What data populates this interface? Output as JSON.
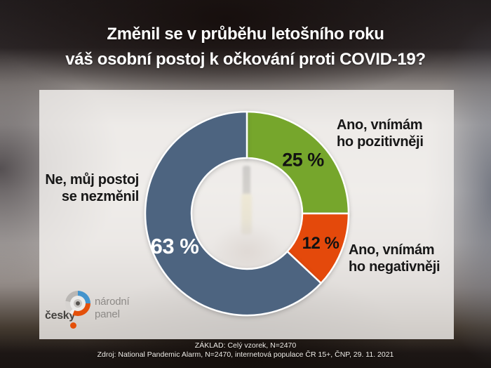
{
  "title": {
    "line1": "Změnil se v průběhu letošního roku",
    "line2": "váš osobní postoj k očkování proti COVID-19?"
  },
  "chart_data": {
    "type": "donut",
    "title": "Změnil se v průběhu letošního roku váš osobní postoj k očkování proti COVID-19?",
    "unit": "%",
    "start_angle_deg": 0,
    "direction": "clockwise",
    "inner_radius_ratio": 0.545,
    "legend_position": "callouts-around-donut",
    "segments": [
      {
        "key": "positive",
        "label": "Ano, vnímám ho pozitivněji",
        "callout_lines": [
          "Ano, vnímám",
          "ho pozitivněji"
        ],
        "value": 25,
        "display": "25 %",
        "color": "#76a62c"
      },
      {
        "key": "negative",
        "label": "Ano, vnímám ho negativněji",
        "callout_lines": [
          "Ano, vnímám",
          "ho negativněji"
        ],
        "value": 12,
        "display": "12 %",
        "color": "#e4490b"
      },
      {
        "key": "no_change",
        "label": "Ne, můj postoj se nezměnil",
        "callout_lines": [
          "Ne, můj postoj",
          "se nezměnil"
        ],
        "value": 63,
        "display": "63 %",
        "color": "#4d6480"
      }
    ]
  },
  "logo": {
    "prefix": "český",
    "name_line1": "národní",
    "name_line2": "panel"
  },
  "footer": {
    "line1": "ZÁKLAD: Celý vzorek, N=2470",
    "line2": "Zdroj: National Pandemic Alarm, N=2470, internetová populace ČR 15+, ČNP, 29. 11. 2021"
  },
  "colors": {
    "positive": "#76a62c",
    "negative": "#e4490b",
    "no_change": "#4d6480",
    "title_text": "#ffffff",
    "label_text": "#171717",
    "logo_blue": "#4394cd",
    "logo_orange": "#e4500a"
  }
}
